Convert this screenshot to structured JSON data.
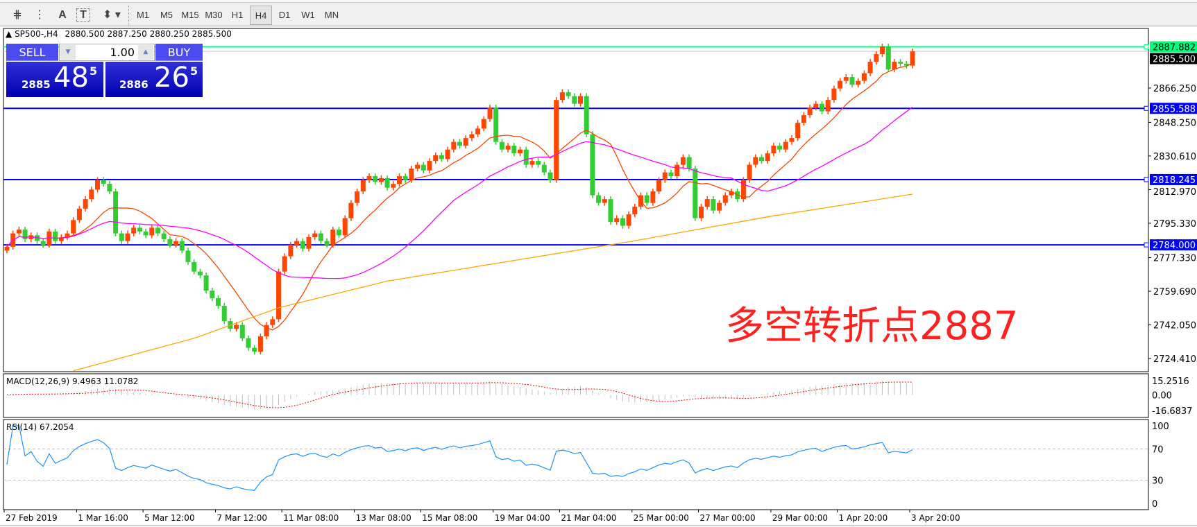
{
  "toolbar": {
    "icons": [
      "elliott-wave-icon",
      "fibonacci-fan-icon",
      "text-icon",
      "text-label-icon",
      "arrows-icon"
    ],
    "icon_glyphs": [
      "⋕",
      "⋮",
      "A",
      "T",
      "⬍"
    ],
    "timeframes": [
      "M1",
      "M5",
      "M15",
      "M30",
      "H1",
      "H4",
      "D1",
      "W1",
      "MN"
    ],
    "active_timeframe": "H4"
  },
  "chart_header": {
    "symbol": "SP500-,H4",
    "ohlc": "2880.500 2887.250 2880.250 2885.500"
  },
  "one_click": {
    "sell_label": "SELL",
    "buy_label": "BUY",
    "lot": "1.00",
    "sell_prefix": "2885",
    "sell_big": "48",
    "sell_sup": "5",
    "buy_prefix": "2886",
    "buy_big": "26",
    "buy_sup": "5"
  },
  "annotation": "多空转折点2887",
  "colors": {
    "bull": "#ff4500",
    "bear": "#32cd32",
    "hline": "#0000ff",
    "green_line": "#00ff7f",
    "ma_fast": "#ff4500",
    "ma_mid": "#ff00ff",
    "ma_slow": "#ffa500",
    "rsi": "#1e90ff",
    "macd_signal": "#ff0000",
    "macd_hist": "#c0c0c0"
  },
  "chart_data": {
    "type": "candlestick",
    "price_axis": {
      "range": [
        2717.5,
        2897.5
      ],
      "ticks": [
        "2866.250",
        "2848.250",
        "2830.610",
        "2812.970",
        "2795.330",
        "2777.330",
        "2759.690",
        "2742.050",
        "2724.410"
      ]
    },
    "hlines": [
      {
        "value": 2887.882,
        "label": "2887.882",
        "color": "green"
      },
      {
        "value": 2855.588,
        "label": "2855.588",
        "color": "blue"
      },
      {
        "value": 2818.245,
        "label": "2818.245",
        "color": "blue"
      },
      {
        "value": 2784.0,
        "label": "2784.000",
        "color": "blue"
      }
    ],
    "current_price": {
      "value": 2885.5,
      "label": "2885.500"
    },
    "closes": [
      2783,
      2790,
      2792,
      2787,
      2789,
      2786,
      2784,
      2791,
      2786,
      2788,
      2790,
      2797,
      2803,
      2808,
      2813,
      2818,
      2816,
      2812,
      2790,
      2786,
      2790,
      2793,
      2791,
      2789,
      2793,
      2790,
      2787,
      2784,
      2786,
      2781,
      2775,
      2770,
      2768,
      2760,
      2756,
      2752,
      2744,
      2740,
      2742,
      2735,
      2730,
      2728,
      2736,
      2742,
      2745,
      2770,
      2778,
      2784,
      2786,
      2782,
      2788,
      2790,
      2786,
      2784,
      2792,
      2789,
      2798,
      2806,
      2812,
      2818,
      2820,
      2817,
      2819,
      2814,
      2816,
      2820,
      2818,
      2824,
      2826,
      2823,
      2828,
      2831,
      2829,
      2834,
      2838,
      2836,
      2840,
      2842,
      2845,
      2850,
      2856,
      2838,
      2834,
      2836,
      2832,
      2834,
      2826,
      2828,
      2826,
      2822,
      2818,
      2860,
      2864,
      2862,
      2858,
      2862,
      2842,
      2810,
      2806,
      2808,
      2796,
      2798,
      2794,
      2800,
      2804,
      2810,
      2806,
      2812,
      2818,
      2822,
      2820,
      2826,
      2830,
      2824,
      2798,
      2804,
      2808,
      2802,
      2806,
      2810,
      2812,
      2808,
      2818,
      2826,
      2830,
      2828,
      2832,
      2836,
      2834,
      2838,
      2840,
      2848,
      2852,
      2856,
      2858,
      2854,
      2860,
      2866,
      2870,
      2872,
      2868,
      2870,
      2874,
      2880,
      2884,
      2888,
      2876,
      2880,
      2879,
      2878,
      2885.5
    ],
    "ma_slow_points": [
      [
        11,
        2718
      ],
      [
        31,
        2735
      ],
      [
        45,
        2751
      ],
      [
        63,
        2765
      ],
      [
        103,
        2785.6
      ],
      [
        126,
        2798.7
      ],
      [
        150,
        2810.6
      ]
    ],
    "date_ticks": [
      "27 Feb 2019",
      "1 Mar 16:00",
      "5 Mar 12:00",
      "7 Mar 12:00",
      "11 Mar 08:00",
      "13 Mar 08:00",
      "15 Mar 08:00",
      "19 Mar 04:00",
      "21 Mar 04:00",
      "25 Mar 00:00",
      "27 Mar 00:00",
      "29 Mar 00:00",
      "1 Apr 20:00",
      "3 Apr 20:00"
    ],
    "macd": {
      "label": "MACD(12,26,9) 9.4963 11.0782",
      "ticks": [
        "15.2516",
        "0.00",
        "-16.6837"
      ],
      "range": [
        -16.6837,
        15.2516
      ]
    },
    "rsi": {
      "label": "RSI(14) 67.2054",
      "ticks": [
        "100",
        "70",
        "30",
        "0"
      ],
      "levels": [
        70,
        30
      ]
    }
  }
}
